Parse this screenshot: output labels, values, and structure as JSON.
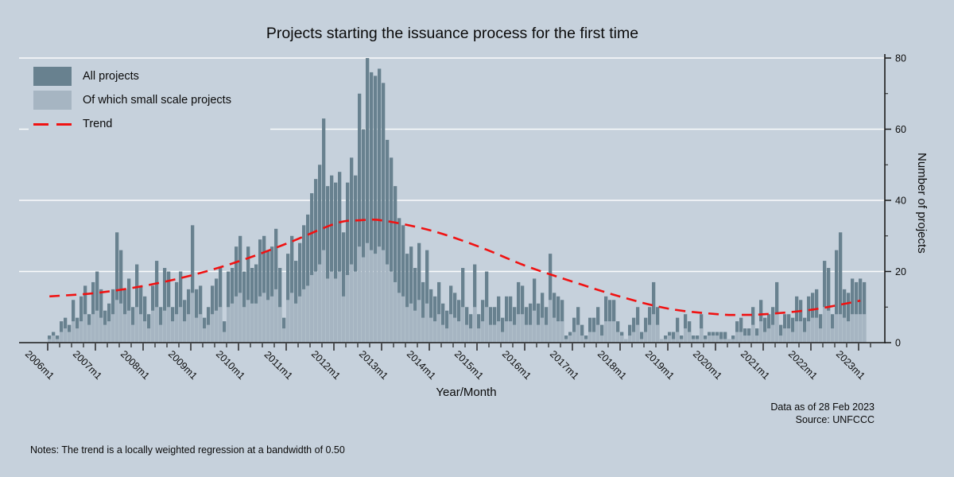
{
  "title": "Projects starting the issuance process for the first time",
  "colors": {
    "background": "#c6d1dc",
    "bar_all": "#68818f",
    "bar_small": "#a6b5c2",
    "gridline": "#ffffff",
    "axis": "#1a1a1a",
    "trend": "#f01212",
    "text": "#0a0a0a"
  },
  "legend": {
    "items": [
      {
        "label": "All projects",
        "type": "bar",
        "color": "#68818f"
      },
      {
        "label": "Of which small scale projects",
        "type": "bar",
        "color": "#a6b5c2"
      },
      {
        "label": "Trend",
        "type": "dash",
        "color": "#f01212"
      }
    ]
  },
  "footer": {
    "data_as_of": "Data as of 28 Feb 2023",
    "source": "Source: UNFCCC",
    "notes": "Notes: The trend is a locally weighted regression at a bandwidth of 0.50"
  },
  "chart_data": {
    "type": "bar",
    "title": "Projects starting the issuance process for the first time",
    "xlabel": "Year/Month",
    "ylabel": "Number of projects",
    "x_start": "2006m1",
    "x_end": "2023m2",
    "frequency": "monthly",
    "ylim": [
      0,
      80
    ],
    "yticks": [
      0,
      20,
      40,
      60,
      80
    ],
    "grid": true,
    "legend_position": "top-left",
    "x_tick_labels": [
      "2006m1",
      "2007m1",
      "2008m1",
      "2009m1",
      "2010m1",
      "2011m1",
      "2012m1",
      "2013m1",
      "2014m1",
      "2015m1",
      "2016m1",
      "2017m1",
      "2018m1",
      "2019m1",
      "2020m1",
      "2021m1",
      "2022m1",
      "2023m1"
    ],
    "x_minor_tick_months": 3,
    "series": [
      {
        "name": "All projects",
        "values": [
          2,
          3,
          2,
          6,
          7,
          5,
          12,
          7,
          13,
          16,
          8,
          17,
          20,
          15,
          9,
          11,
          15,
          31,
          26,
          15,
          18,
          10,
          22,
          16,
          13,
          8,
          16,
          23,
          10,
          21,
          20,
          10,
          17,
          20,
          12,
          15,
          33,
          15,
          16,
          7,
          10,
          16,
          18,
          21,
          6,
          20,
          21,
          27,
          30,
          20,
          27,
          21,
          22,
          29,
          30,
          26,
          27,
          32,
          21,
          7,
          25,
          30,
          23,
          28,
          33,
          36,
          42,
          46,
          50,
          63,
          44,
          47,
          45,
          48,
          31,
          45,
          52,
          47,
          70,
          60,
          80,
          76,
          75,
          77,
          73,
          57,
          52,
          44,
          35,
          33,
          25,
          27,
          21,
          28,
          17,
          26,
          15,
          13,
          17,
          11,
          9,
          16,
          14,
          12,
          21,
          10,
          8,
          22,
          8,
          12,
          20,
          10,
          10,
          13,
          7,
          13,
          13,
          10,
          17,
          16,
          10,
          11,
          18,
          11,
          14,
          10,
          25,
          14,
          13,
          12,
          2,
          3,
          7,
          10,
          5,
          2,
          7,
          7,
          10,
          5,
          13,
          12,
          12,
          6,
          3,
          1,
          5,
          7,
          10,
          3,
          7,
          10,
          17,
          10,
          1,
          2,
          3,
          3,
          7,
          2,
          8,
          6,
          2,
          2,
          8,
          2,
          3,
          3,
          3,
          3,
          3,
          1,
          2,
          6,
          7,
          4,
          4,
          10,
          4,
          12,
          7,
          8,
          10,
          17,
          5,
          8,
          8,
          7,
          13,
          12,
          7,
          13,
          14,
          15,
          8,
          23,
          21,
          8,
          26,
          31,
          15,
          14,
          18,
          17,
          18,
          17
        ]
      },
      {
        "name": "Of which small scale projects",
        "values": [
          1,
          2,
          1,
          3,
          4,
          3,
          6,
          4,
          6,
          8,
          5,
          8,
          9,
          7,
          5,
          6,
          8,
          12,
          11,
          8,
          9,
          5,
          10,
          8,
          6,
          4,
          9,
          10,
          5,
          9,
          10,
          6,
          8,
          10,
          6,
          8,
          14,
          7,
          8,
          4,
          5,
          8,
          9,
          10,
          3,
          10,
          11,
          13,
          14,
          10,
          12,
          11,
          11,
          13,
          14,
          12,
          13,
          15,
          10,
          4,
          12,
          14,
          11,
          13,
          15,
          16,
          19,
          20,
          22,
          26,
          18,
          20,
          18,
          20,
          13,
          19,
          22,
          20,
          27,
          24,
          28,
          26,
          25,
          27,
          26,
          22,
          20,
          17,
          14,
          13,
          10,
          11,
          9,
          12,
          7,
          11,
          7,
          6,
          8,
          5,
          4,
          8,
          7,
          6,
          10,
          5,
          4,
          10,
          4,
          6,
          10,
          5,
          5,
          6,
          3,
          6,
          6,
          5,
          8,
          8,
          5,
          5,
          9,
          5,
          7,
          5,
          12,
          7,
          6,
          6,
          1,
          2,
          3,
          5,
          2,
          1,
          3,
          3,
          5,
          2,
          6,
          6,
          6,
          3,
          2,
          1,
          2,
          3,
          5,
          1,
          3,
          5,
          8,
          5,
          1,
          1,
          2,
          1,
          3,
          1,
          4,
          3,
          1,
          1,
          4,
          1,
          2,
          2,
          2,
          1,
          1,
          1,
          1,
          3,
          3,
          2,
          2,
          5,
          2,
          6,
          3,
          4,
          5,
          8,
          2,
          4,
          4,
          3,
          6,
          6,
          3,
          6,
          7,
          7,
          4,
          10,
          9,
          4,
          8,
          8,
          7,
          6,
          8,
          8,
          8,
          8
        ]
      },
      {
        "name": "Trend",
        "type": "dashed-line",
        "control_points": [
          [
            0,
            13
          ],
          [
            12,
            14
          ],
          [
            24,
            16
          ],
          [
            36,
            19
          ],
          [
            48,
            23
          ],
          [
            60,
            28
          ],
          [
            72,
            33.5
          ],
          [
            78,
            34.4
          ],
          [
            84,
            34.3
          ],
          [
            96,
            31.5
          ],
          [
            108,
            27
          ],
          [
            120,
            21.5
          ],
          [
            132,
            17
          ],
          [
            144,
            12.8
          ],
          [
            156,
            9.5
          ],
          [
            168,
            8
          ],
          [
            174,
            7.8
          ],
          [
            180,
            8
          ],
          [
            192,
            9.3
          ],
          [
            204,
            11.8
          ]
        ]
      }
    ]
  }
}
